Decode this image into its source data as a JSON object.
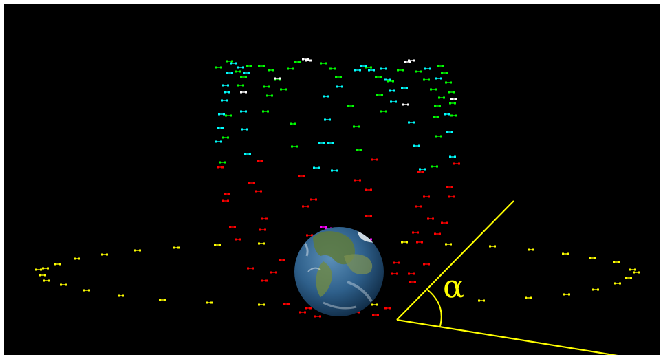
{
  "scene": {
    "background": "#000000",
    "frame_color": "#ffffff",
    "angle_symbol": "α",
    "annotation_color": "#ffff00",
    "central_body": "earth-globe",
    "satellite_icon": "satellite-icon",
    "orbit_colors": {
      "equatorial": "#ffff00",
      "polar_low": "#ff0000",
      "polar_mid": "#00ff00",
      "polar_high": "#00ffff",
      "other": "#ffffff",
      "on_globe": "#ff00ff"
    }
  }
}
